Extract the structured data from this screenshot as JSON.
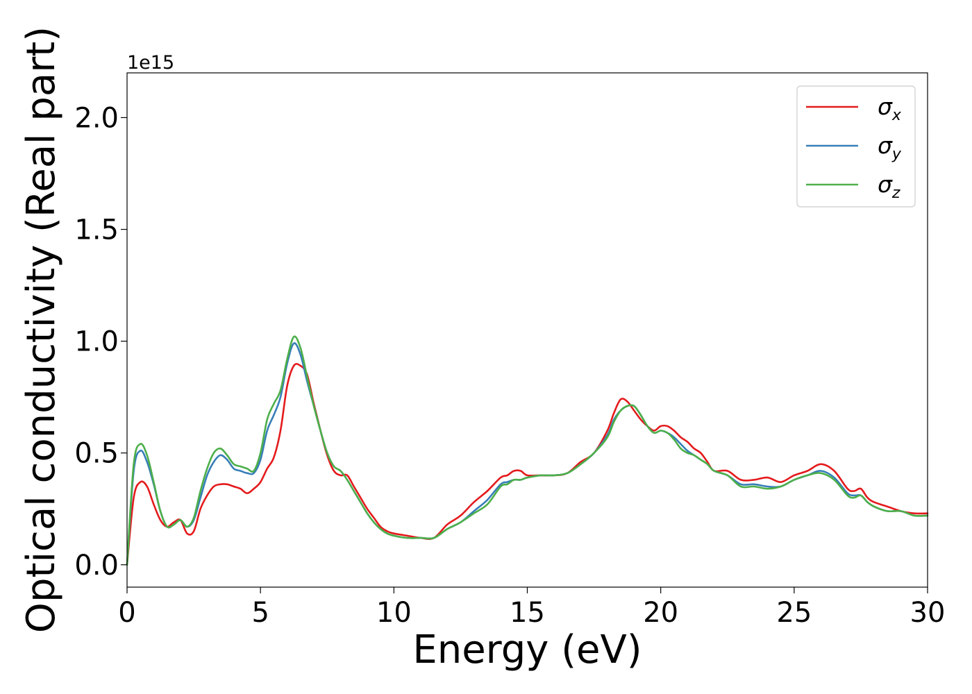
{
  "chart_data": {
    "type": "line",
    "title": "",
    "xlabel": "Energy (eV)",
    "ylabel": "Optical conductivity (Real part)",
    "y_offset_label": "1e15",
    "xlim": [
      0,
      30
    ],
    "ylim": [
      -0.1,
      2.2
    ],
    "x_ticks": [
      0,
      5,
      10,
      15,
      20,
      25,
      30
    ],
    "x_tick_labels": [
      "0",
      "5",
      "10",
      "15",
      "20",
      "25",
      "30"
    ],
    "y_ticks": [
      0.0,
      0.5,
      1.0,
      1.5,
      2.0
    ],
    "y_tick_labels": [
      "0.0",
      "0.5",
      "1.0",
      "1.5",
      "2.0"
    ],
    "grid": false,
    "legend_position": "top-right",
    "x": [
      0,
      0.25,
      0.5,
      0.75,
      1,
      1.25,
      1.5,
      1.75,
      2,
      2.25,
      2.5,
      2.75,
      3,
      3.25,
      3.5,
      3.75,
      4,
      4.25,
      4.5,
      4.75,
      5,
      5.25,
      5.5,
      5.75,
      6,
      6.25,
      6.5,
      6.75,
      7,
      7.25,
      7.5,
      7.75,
      8,
      8.25,
      8.5,
      8.75,
      9,
      9.25,
      9.5,
      9.75,
      10,
      10.5,
      11,
      11.5,
      12,
      12.5,
      13,
      13.5,
      14,
      14.25,
      14.5,
      14.75,
      15,
      15.5,
      16,
      16.5,
      17,
      17.5,
      18,
      18.25,
      18.5,
      18.75,
      19,
      19.25,
      19.5,
      19.75,
      20,
      20.25,
      20.5,
      20.75,
      21,
      21.25,
      21.5,
      21.75,
      22,
      22.5,
      23,
      23.5,
      24,
      24.5,
      25,
      25.5,
      26,
      26.5,
      27,
      27.25,
      27.5,
      27.75,
      28,
      28.5,
      29,
      29.5,
      30
    ],
    "series": [
      {
        "name": "σ",
        "name_subscript": "x",
        "color": "#e41a1c",
        "values": [
          0,
          0.3,
          0.37,
          0.35,
          0.27,
          0.2,
          0.17,
          0.19,
          0.2,
          0.14,
          0.15,
          0.25,
          0.31,
          0.35,
          0.36,
          0.36,
          0.35,
          0.34,
          0.32,
          0.34,
          0.37,
          0.43,
          0.48,
          0.6,
          0.8,
          0.89,
          0.89,
          0.85,
          0.72,
          0.6,
          0.49,
          0.42,
          0.4,
          0.4,
          0.35,
          0.3,
          0.25,
          0.21,
          0.17,
          0.15,
          0.14,
          0.13,
          0.12,
          0.12,
          0.18,
          0.22,
          0.28,
          0.33,
          0.39,
          0.4,
          0.42,
          0.42,
          0.4,
          0.4,
          0.4,
          0.41,
          0.46,
          0.5,
          0.6,
          0.68,
          0.74,
          0.73,
          0.69,
          0.65,
          0.62,
          0.6,
          0.62,
          0.62,
          0.6,
          0.57,
          0.55,
          0.52,
          0.5,
          0.46,
          0.42,
          0.42,
          0.38,
          0.38,
          0.39,
          0.37,
          0.4,
          0.42,
          0.45,
          0.42,
          0.34,
          0.33,
          0.34,
          0.3,
          0.28,
          0.26,
          0.24,
          0.23,
          0.23
        ]
      },
      {
        "name": "σ",
        "name_subscript": "y",
        "color": "#377eb8",
        "values": [
          0,
          0.42,
          0.51,
          0.46,
          0.36,
          0.24,
          0.17,
          0.18,
          0.2,
          0.17,
          0.2,
          0.3,
          0.4,
          0.46,
          0.49,
          0.47,
          0.43,
          0.42,
          0.41,
          0.41,
          0.47,
          0.6,
          0.67,
          0.75,
          0.9,
          0.99,
          0.94,
          0.82,
          0.71,
          0.6,
          0.5,
          0.44,
          0.42,
          0.38,
          0.33,
          0.28,
          0.23,
          0.19,
          0.16,
          0.14,
          0.13,
          0.12,
          0.12,
          0.12,
          0.16,
          0.19,
          0.24,
          0.29,
          0.36,
          0.37,
          0.38,
          0.38,
          0.39,
          0.4,
          0.4,
          0.41,
          0.45,
          0.5,
          0.58,
          0.65,
          0.69,
          0.71,
          0.71,
          0.67,
          0.62,
          0.59,
          0.6,
          0.59,
          0.57,
          0.54,
          0.51,
          0.49,
          0.47,
          0.45,
          0.42,
          0.4,
          0.36,
          0.36,
          0.35,
          0.35,
          0.38,
          0.4,
          0.42,
          0.39,
          0.32,
          0.31,
          0.31,
          0.28,
          0.26,
          0.24,
          0.24,
          0.22,
          0.22
        ]
      },
      {
        "name": "σ",
        "name_subscript": "z",
        "color": "#4daf4a",
        "values": [
          0,
          0.45,
          0.54,
          0.49,
          0.37,
          0.24,
          0.17,
          0.18,
          0.2,
          0.17,
          0.21,
          0.33,
          0.43,
          0.5,
          0.52,
          0.49,
          0.45,
          0.44,
          0.43,
          0.42,
          0.5,
          0.65,
          0.72,
          0.78,
          0.92,
          1.02,
          0.97,
          0.84,
          0.71,
          0.6,
          0.5,
          0.44,
          0.42,
          0.38,
          0.33,
          0.28,
          0.23,
          0.19,
          0.16,
          0.14,
          0.13,
          0.12,
          0.12,
          0.12,
          0.16,
          0.19,
          0.23,
          0.27,
          0.35,
          0.36,
          0.38,
          0.38,
          0.39,
          0.4,
          0.4,
          0.41,
          0.45,
          0.5,
          0.57,
          0.64,
          0.69,
          0.71,
          0.71,
          0.67,
          0.62,
          0.59,
          0.6,
          0.59,
          0.56,
          0.52,
          0.5,
          0.49,
          0.47,
          0.45,
          0.42,
          0.4,
          0.35,
          0.35,
          0.34,
          0.35,
          0.38,
          0.4,
          0.41,
          0.38,
          0.31,
          0.3,
          0.31,
          0.28,
          0.26,
          0.24,
          0.24,
          0.22,
          0.22
        ]
      }
    ]
  }
}
